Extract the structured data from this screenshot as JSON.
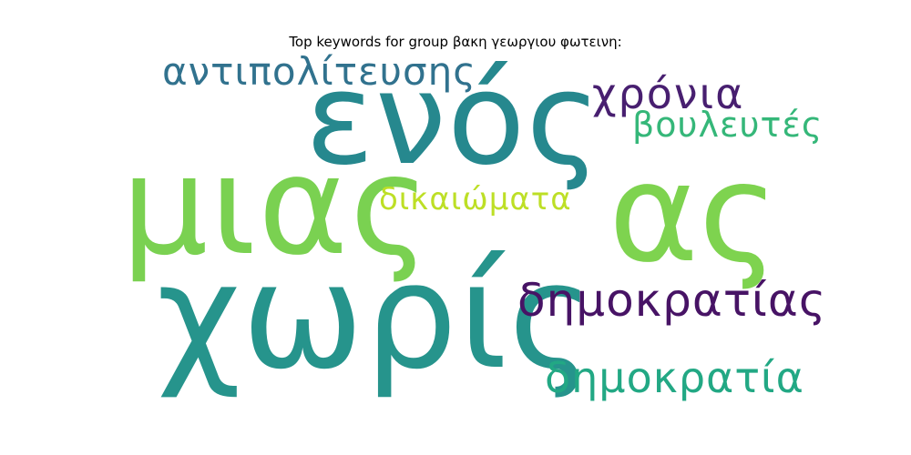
{
  "title": "Top keywords for group βακη γεωργιου φωτεινη:",
  "words": [
    {
      "text": "χωρίς",
      "color": "#26948c"
    },
    {
      "text": "μιας",
      "color": "#7ad151"
    },
    {
      "text": "ενός",
      "color": "#26888e"
    },
    {
      "text": "ας",
      "color": "#7ed34f"
    },
    {
      "text": "αντιπολίτευσης",
      "color": "#31728e"
    },
    {
      "text": "χρόνια",
      "color": "#481f70"
    },
    {
      "text": "βουλευτές",
      "color": "#35b779"
    },
    {
      "text": "δικαιώματα",
      "color": "#bddf26"
    },
    {
      "text": "δημοκρατίας",
      "color": "#471365"
    },
    {
      "text": "δημοκρατία",
      "color": "#22a884"
    }
  ]
}
